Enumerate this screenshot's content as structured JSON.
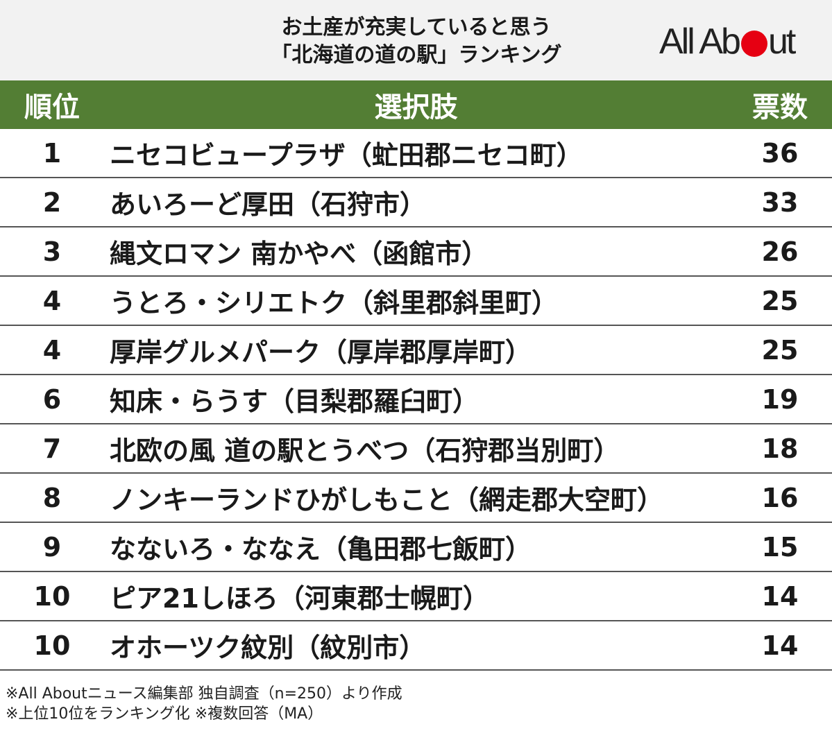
{
  "header": {
    "title_line1": "お土産が充実していると思う",
    "title_line2": "「北海道の道の駅」ランキング",
    "logo_text_left": "All Ab",
    "logo_text_right": "ut",
    "logo_dot_color": "#e60012"
  },
  "chart_data": {
    "type": "table",
    "columns": [
      "順位",
      "選択肢",
      "票数"
    ],
    "rows": [
      {
        "rank": "1",
        "name": "ニセコビュープラザ（虻田郡ニセコ町）",
        "votes": "36"
      },
      {
        "rank": "2",
        "name": "あいろーど厚田（石狩市）",
        "votes": "33"
      },
      {
        "rank": "3",
        "name": "縄文ロマン 南かやべ（函館市）",
        "votes": "26"
      },
      {
        "rank": "4",
        "name": "うとろ・シリエトク（斜里郡斜里町）",
        "votes": "25"
      },
      {
        "rank": "4",
        "name": "厚岸グルメパーク（厚岸郡厚岸町）",
        "votes": "25"
      },
      {
        "rank": "6",
        "name": "知床・らうす（目梨郡羅臼町）",
        "votes": "19"
      },
      {
        "rank": "7",
        "name": "北欧の風 道の駅とうべつ（石狩郡当別町）",
        "votes": "18"
      },
      {
        "rank": "8",
        "name": "ノンキーランドひがしもこと（網走郡大空町）",
        "votes": "16"
      },
      {
        "rank": "9",
        "name": "なないろ・ななえ（亀田郡七飯町）",
        "votes": "15"
      },
      {
        "rank": "10",
        "name": "ピア21しほろ（河東郡士幌町）",
        "votes": "14"
      },
      {
        "rank": "10",
        "name": "オホーツク紋別（紋別市）",
        "votes": "14"
      }
    ],
    "header_color": "#537e34"
  },
  "notes": {
    "line1": "※All Aboutニュース編集部 独自調査（n=250）より作成",
    "line2": "※上位10位をランキング化 ※複数回答（MA）"
  }
}
